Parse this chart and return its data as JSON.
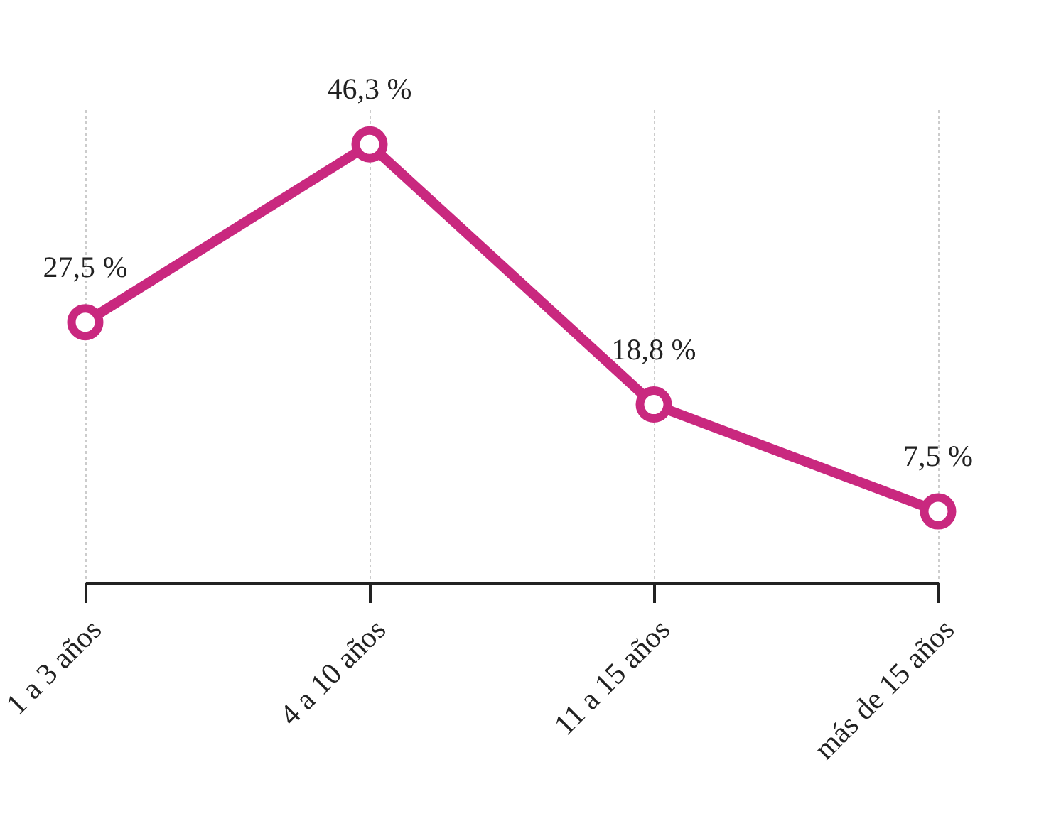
{
  "chart_data": {
    "type": "line",
    "categories": [
      "1 a 3 años",
      "4 a 10 años",
      "11 a 15 años",
      "más de 15 años"
    ],
    "series": [
      {
        "color": "#c9287f",
        "values": [
          27.5,
          46.3,
          18.8,
          7.5
        ],
        "value_labels": [
          "27,5 %",
          "46,3 %",
          "18,8 %",
          "7,5 %"
        ]
      }
    ],
    "grid": "x",
    "marker": "circle",
    "line_style": "solid"
  }
}
